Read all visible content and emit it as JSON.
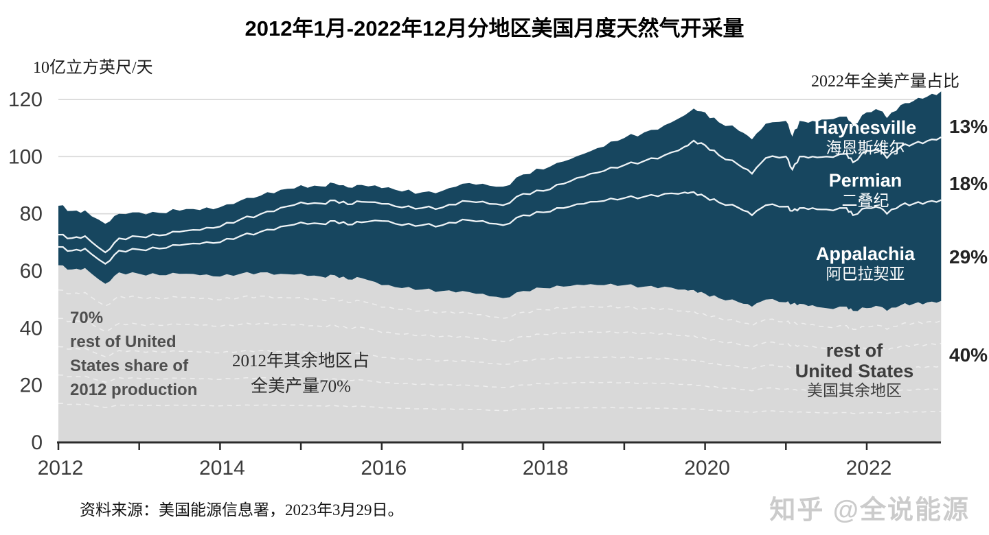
{
  "title": "2012年1月-2022年12月分地区美国月度天然气开采量",
  "unit_label": "10亿立方英尺/天",
  "right_header": "2022年全美产量占比",
  "source": "资料来源：美国能源信息署，2023年3月29日。",
  "watermark": "知乎 @全说能源",
  "annotations": {
    "left_en": [
      "70%",
      "rest of United",
      "States share of",
      "2012 production"
    ],
    "left_zh": [
      "2012年其余地区占",
      "全美产量70%"
    ]
  },
  "colors": {
    "shale_fill": "#17465f",
    "rest_fill": "#d9d9d9",
    "separator_line": "#eef3f6",
    "gridline": "#d8d8d8",
    "axis": "#2b2b2b",
    "tick_label": "#3b3b3b"
  },
  "chart_data": {
    "type": "area",
    "stacked": true,
    "title": "2012年1月-2022年12月分地区美国月度天然气开采量",
    "ylabel": "10亿立方英尺/天",
    "xlabel": "",
    "ylim": [
      0,
      120
    ],
    "yticks": [
      0,
      20,
      40,
      60,
      80,
      100,
      120
    ],
    "xticks": [
      2012,
      2013,
      2014,
      2015,
      2016,
      2017,
      2018,
      2019,
      2020,
      2021,
      2022
    ],
    "xtick_labels_shown": [
      "2012",
      "2014",
      "2016",
      "2018",
      "2020",
      "2022"
    ],
    "grid": "horizontal",
    "legend_position": "on-chart-right",
    "x": [
      2012.0,
      2012.17,
      2012.33,
      2012.58,
      2012.75,
      2013.0,
      2013.25,
      2013.5,
      2013.75,
      2014.0,
      2014.25,
      2014.5,
      2014.75,
      2015.0,
      2015.25,
      2015.42,
      2015.58,
      2015.75,
      2016.0,
      2016.25,
      2016.5,
      2016.75,
      2017.0,
      2017.25,
      2017.5,
      2017.75,
      2018.0,
      2018.25,
      2018.5,
      2018.75,
      2019.0,
      2019.25,
      2019.5,
      2019.75,
      2019.86,
      2020.0,
      2020.17,
      2020.42,
      2020.58,
      2020.75,
      2021.0,
      2021.08,
      2021.17,
      2021.33,
      2021.5,
      2021.75,
      2021.83,
      2022.0,
      2022.17,
      2022.25,
      2022.42,
      2022.58,
      2022.75,
      2022.92
    ],
    "series": [
      {
        "name": "rest of United States",
        "label_en_line1": "rest of",
        "label_en_line2": "United States",
        "label_zh": "美国其余地区",
        "share_2022": "40%",
        "values": [
          62,
          60.5,
          61,
          55.5,
          59.5,
          59,
          58.5,
          59,
          58.5,
          58,
          59,
          59.5,
          59,
          59,
          58,
          58.5,
          57,
          57.5,
          55,
          54,
          53.5,
          53,
          53,
          52,
          50.5,
          53,
          54,
          54.5,
          55,
          55,
          55,
          54.5,
          54.5,
          53.5,
          53.3,
          52,
          50.5,
          49,
          47.5,
          50,
          49,
          48.5,
          48.5,
          48,
          47,
          47.5,
          46,
          47,
          47.5,
          46,
          48,
          48.5,
          49,
          49.5
        ]
      },
      {
        "name": "Appalachia",
        "label_en": "Appalachia",
        "label_zh": "阿巴拉契亚",
        "share_2022": "29%",
        "values": [
          6.4,
          6.6,
          6.8,
          7,
          7.6,
          8.5,
          9.3,
          10,
          11,
          12,
          13.2,
          14.2,
          16.5,
          18,
          18.5,
          19,
          19.2,
          19.5,
          22.5,
          22,
          22.5,
          23,
          25,
          25.5,
          25.5,
          26.5,
          26.5,
          27.5,
          28.5,
          29.5,
          30.5,
          31.5,
          32.5,
          34,
          34.3,
          34,
          33.5,
          33,
          32,
          33,
          33.5,
          32.5,
          33.5,
          34,
          34.5,
          34.5,
          33.5,
          35,
          34.5,
          34,
          35,
          35,
          35.2,
          35.3
        ]
      },
      {
        "name": "Permian",
        "label_en": "Permian",
        "label_zh": "二叠纪",
        "share_2022": "18%",
        "values": [
          4.3,
          4.4,
          4.4,
          4,
          4.3,
          4.5,
          4.6,
          4.7,
          4.8,
          5.5,
          5.8,
          6.2,
          6.6,
          7,
          7.1,
          7.2,
          7.1,
          7.2,
          6,
          6.2,
          6,
          6.2,
          6.5,
          6.8,
          7,
          7.5,
          7.5,
          8.5,
          9.5,
          10.5,
          11.5,
          12.5,
          13.5,
          16,
          18,
          18,
          16.5,
          15,
          14.5,
          16.5,
          17.5,
          14.5,
          18,
          18,
          18.5,
          19,
          18.5,
          20,
          20,
          19.5,
          20.5,
          21,
          21.3,
          22
        ]
      },
      {
        "name": "Haynesville",
        "label_en": "Haynesville",
        "label_zh": "海恩斯维尔",
        "share_2022": "13%",
        "values": [
          10.1,
          9.5,
          9,
          10,
          8.6,
          8.5,
          7.9,
          7.4,
          7,
          6.8,
          6.6,
          6.4,
          6.3,
          6,
          6,
          5.9,
          5.9,
          5.9,
          5.5,
          5.6,
          5.5,
          5.8,
          6,
          6.2,
          6.5,
          6.8,
          7.5,
          7.8,
          8,
          8.5,
          9.5,
          10,
          10.5,
          11,
          11.2,
          11.5,
          11.5,
          12,
          12,
          12,
          12.5,
          11.5,
          12.5,
          12.5,
          13,
          13,
          13,
          13.5,
          14,
          14,
          14.5,
          15,
          15.5,
          16
        ]
      }
    ]
  }
}
